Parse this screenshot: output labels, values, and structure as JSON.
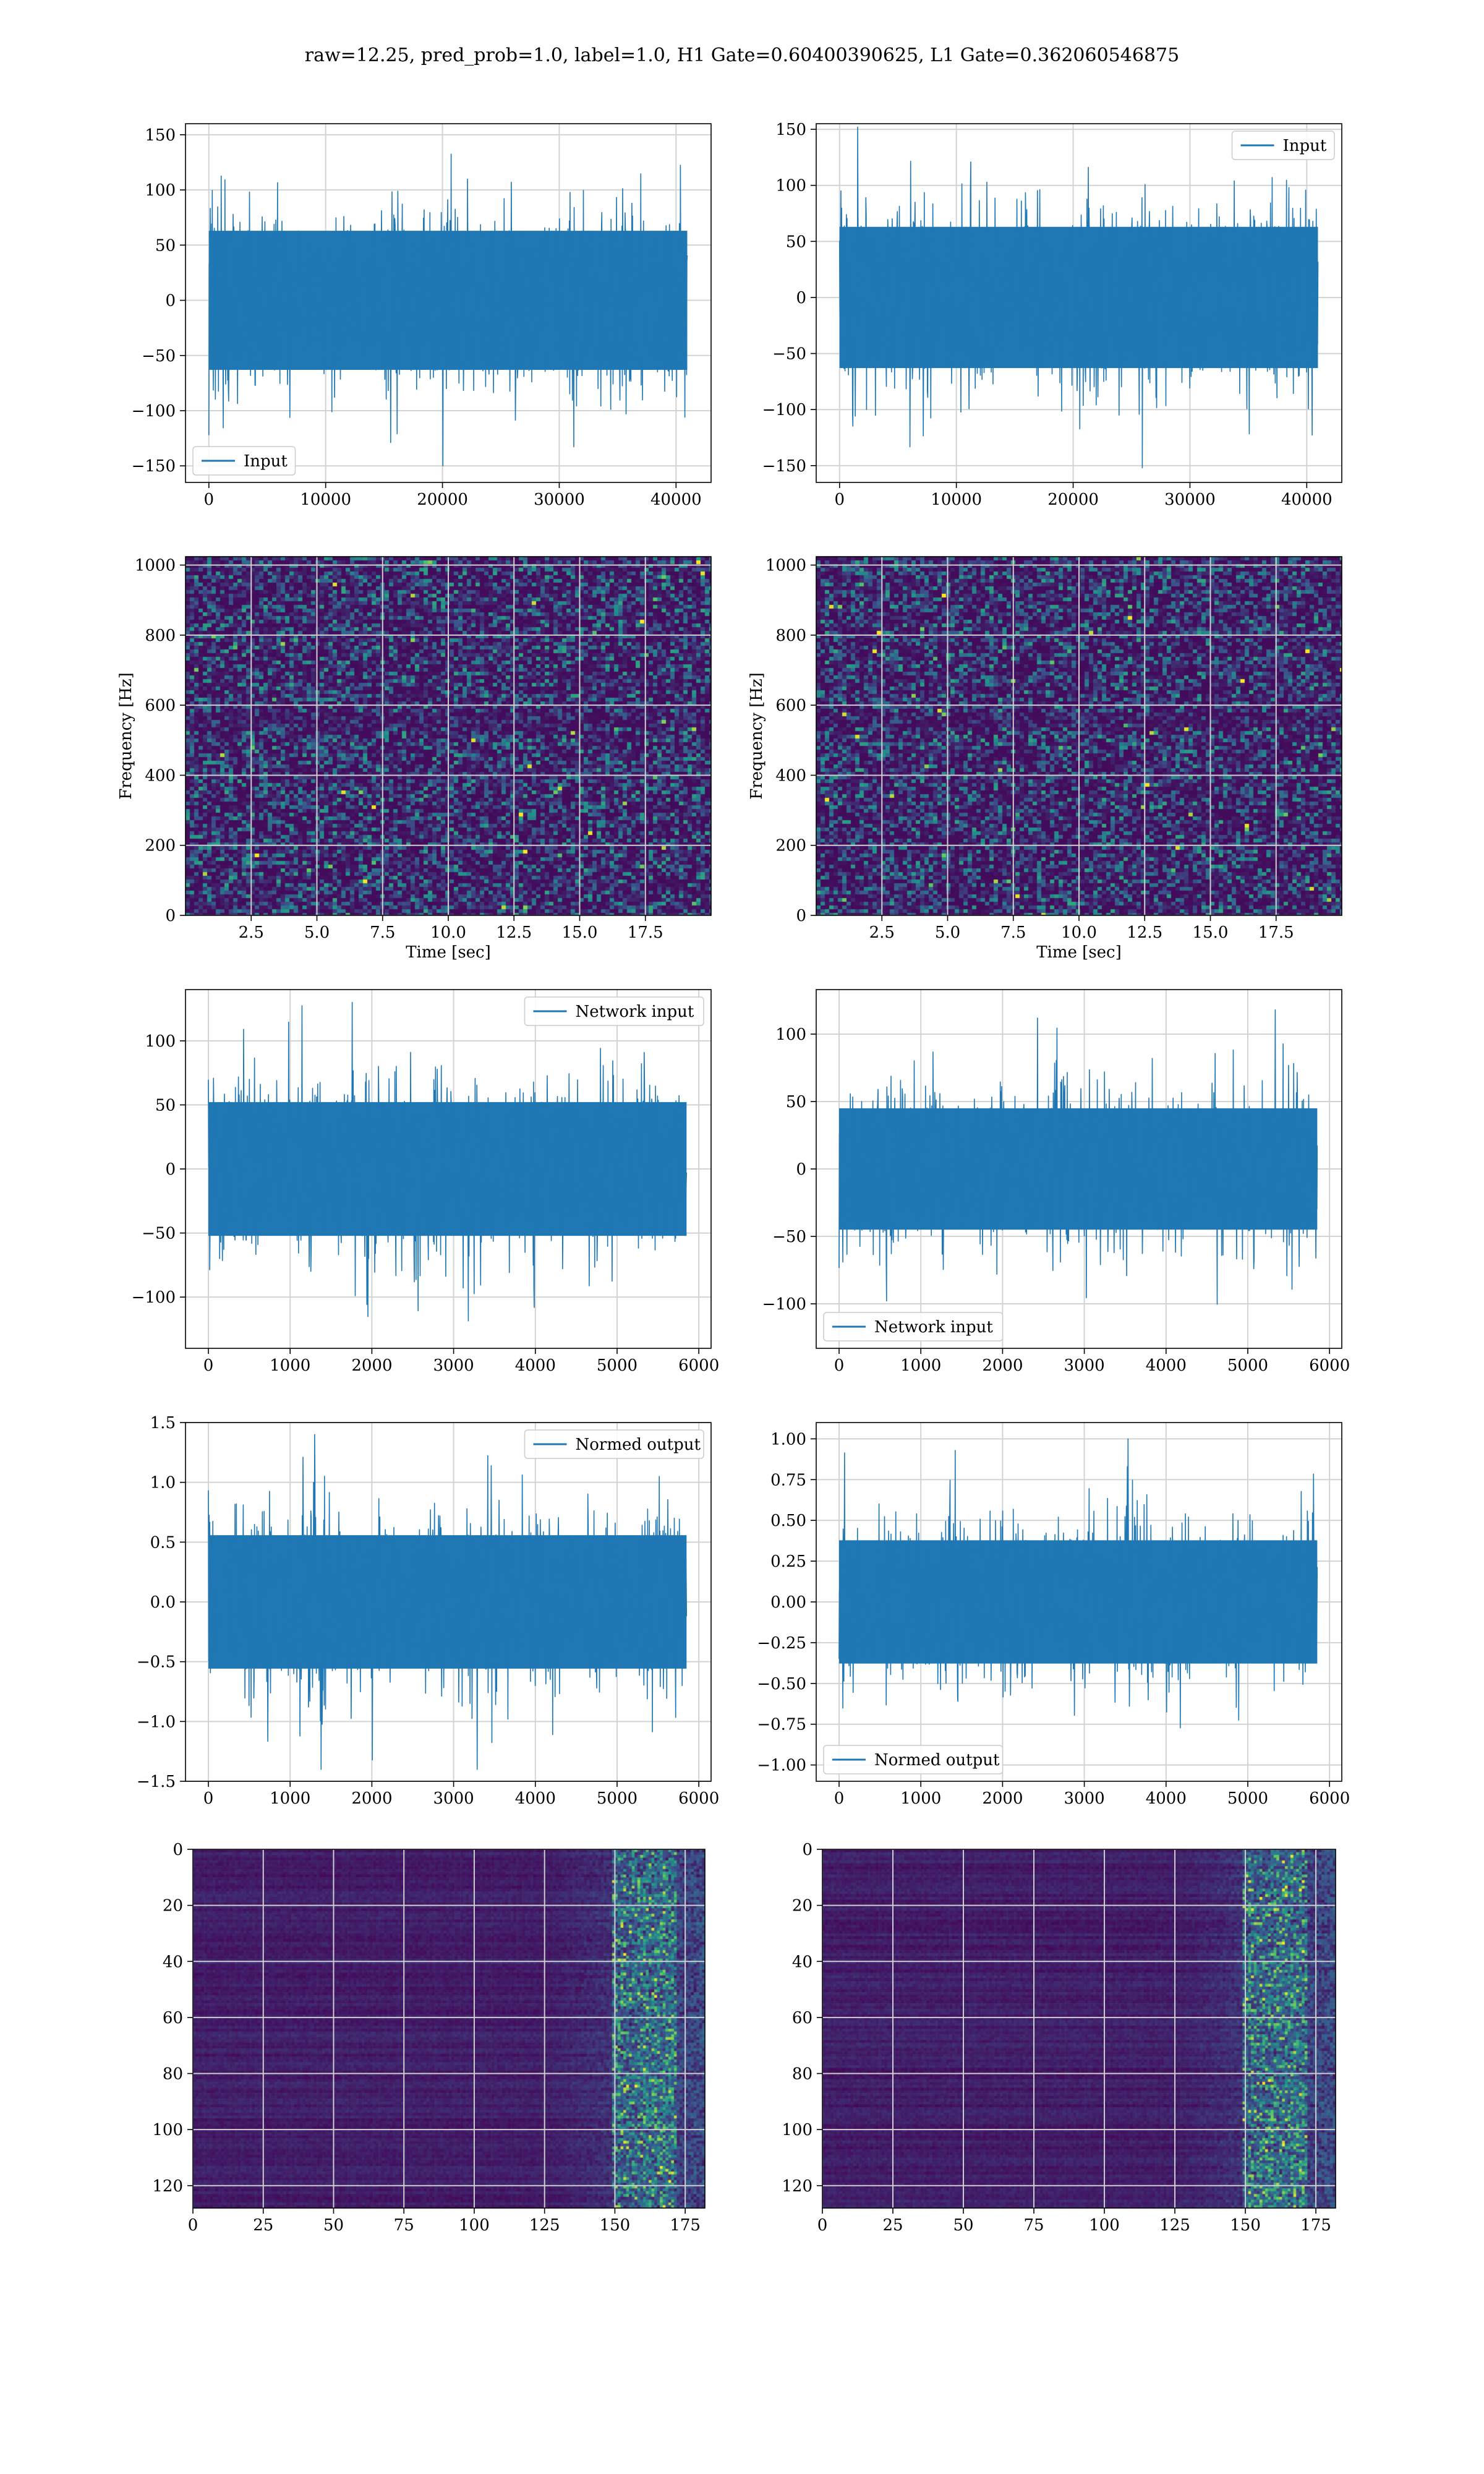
{
  "figure": {
    "suptitle": "raw=12.25, pred_prob=1.0, label=1.0, H1 Gate=0.60400390625, L1 Gate=0.362060546875"
  },
  "colors": {
    "line": "#1f77b4",
    "grid": "#d3d3d3",
    "viridis": [
      "#440154",
      "#3b528b",
      "#21918c",
      "#5ec962",
      "#fde725"
    ]
  },
  "chart_data": [
    {
      "id": "input-h1",
      "type": "line",
      "xlim": [
        -2000,
        43000
      ],
      "ylim": [
        -165,
        160
      ],
      "xticks": [
        0,
        10000,
        20000,
        30000,
        40000
      ],
      "yticks": [
        -150,
        -100,
        -50,
        0,
        50,
        100,
        150
      ],
      "x_range": [
        0,
        40960
      ],
      "envelope_core": 70,
      "envelope_peak": 150,
      "legend": "lower-left",
      "series": [
        {
          "name": "Input"
        }
      ],
      "grid": true
    },
    {
      "id": "input-l1",
      "type": "line",
      "xlim": [
        -2000,
        43000
      ],
      "ylim": [
        -165,
        155
      ],
      "xticks": [
        0,
        10000,
        20000,
        30000,
        40000
      ],
      "yticks": [
        -150,
        -100,
        -50,
        0,
        50,
        100,
        150
      ],
      "x_range": [
        0,
        40960
      ],
      "envelope_core": 70,
      "envelope_peak": 152,
      "legend": "upper-right",
      "series": [
        {
          "name": "Input"
        }
      ],
      "grid": true
    },
    {
      "id": "spectrogram-h1",
      "type": "heatmap",
      "xlim": [
        0,
        20
      ],
      "ylim": [
        0,
        1024
      ],
      "xticks": [
        2.5,
        5.0,
        7.5,
        10.0,
        12.5,
        15.0,
        17.5
      ],
      "yticks": [
        0,
        200,
        400,
        600,
        800,
        1000
      ],
      "xlabel": "Time [sec]",
      "ylabel": "Frequency [Hz]",
      "colormap": "viridis",
      "grid": true
    },
    {
      "id": "spectrogram-l1",
      "type": "heatmap",
      "xlim": [
        0,
        20
      ],
      "ylim": [
        0,
        1024
      ],
      "xticks": [
        2.5,
        5.0,
        7.5,
        10.0,
        12.5,
        15.0,
        17.5
      ],
      "yticks": [
        0,
        200,
        400,
        600,
        800,
        1000
      ],
      "xlabel": "Time [sec]",
      "ylabel": "Frequency [Hz]",
      "colormap": "viridis",
      "grid": true
    },
    {
      "id": "network-input-h1",
      "type": "line",
      "xlim": [
        -280,
        6150
      ],
      "ylim": [
        -140,
        140
      ],
      "xticks": [
        0,
        1000,
        2000,
        3000,
        4000,
        5000,
        6000
      ],
      "yticks": [
        -100,
        -50,
        0,
        50,
        100
      ],
      "x_range": [
        0,
        5850
      ],
      "envelope_core": 58,
      "envelope_peak": 130,
      "legend": "upper-right",
      "series": [
        {
          "name": "Network input"
        }
      ],
      "grid": true
    },
    {
      "id": "network-input-l1",
      "type": "line",
      "xlim": [
        -280,
        6150
      ],
      "ylim": [
        -133,
        133
      ],
      "xticks": [
        0,
        1000,
        2000,
        3000,
        4000,
        5000,
        6000
      ],
      "yticks": [
        -100,
        -50,
        0,
        50,
        100
      ],
      "x_range": [
        0,
        5850
      ],
      "envelope_core": 50,
      "envelope_peak": 118,
      "legend": "lower-left",
      "series": [
        {
          "name": "Network input"
        }
      ],
      "grid": true
    },
    {
      "id": "normed-output-h1",
      "type": "line",
      "xlim": [
        -280,
        6150
      ],
      "ylim": [
        -1.5,
        1.5
      ],
      "xticks": [
        0,
        1000,
        2000,
        3000,
        4000,
        5000,
        6000
      ],
      "yticks": [
        -1.5,
        -1.0,
        -0.5,
        0.0,
        0.5,
        1.0,
        1.5
      ],
      "x_range": [
        0,
        5850
      ],
      "envelope_core": 0.62,
      "envelope_peak": 1.4,
      "legend": "upper-right",
      "series": [
        {
          "name": "Normed output"
        }
      ],
      "grid": true
    },
    {
      "id": "normed-output-l1",
      "type": "line",
      "xlim": [
        -280,
        6150
      ],
      "ylim": [
        -1.1,
        1.1
      ],
      "xticks": [
        0,
        1000,
        2000,
        3000,
        4000,
        5000,
        6000
      ],
      "yticks": [
        -1.0,
        -0.75,
        -0.5,
        -0.25,
        0.0,
        0.25,
        0.5,
        0.75,
        1.0
      ],
      "x_range": [
        0,
        5850
      ],
      "envelope_core": 0.42,
      "envelope_peak": 1.0,
      "legend": "lower-left",
      "series": [
        {
          "name": "Normed output"
        }
      ],
      "grid": true
    },
    {
      "id": "feature-map-h1",
      "type": "heatmap",
      "xlim": [
        0,
        182
      ],
      "ylim": [
        128,
        0
      ],
      "xticks": [
        0,
        25,
        50,
        75,
        100,
        125,
        150,
        175
      ],
      "yticks": [
        0,
        20,
        40,
        60,
        80,
        100,
        120
      ],
      "colormap": "viridis",
      "grid": true
    },
    {
      "id": "feature-map-l1",
      "type": "heatmap",
      "xlim": [
        0,
        182
      ],
      "ylim": [
        128,
        0
      ],
      "xticks": [
        0,
        25,
        50,
        75,
        100,
        125,
        150,
        175
      ],
      "yticks": [
        0,
        20,
        40,
        60,
        80,
        100,
        120
      ],
      "colormap": "viridis",
      "grid": true
    }
  ]
}
